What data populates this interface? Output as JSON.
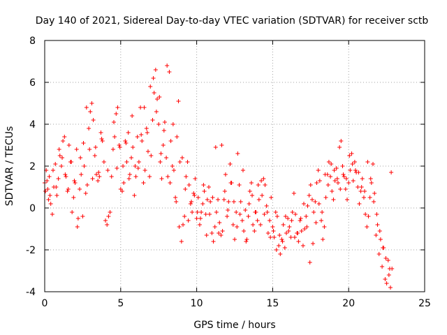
{
  "chart_data": {
    "type": "scatter",
    "title": "Day 140 of 2021, Sidereal Day-to-day VTEC variation (SDTVAR) for receiver sctb",
    "xlabel": "GPS time / hours",
    "ylabel": "SDTVAR / TECUs",
    "xlim": [
      0,
      25
    ],
    "ylim": [
      -4,
      8
    ],
    "xticks": [
      0,
      5,
      10,
      15,
      20,
      25
    ],
    "yticks": [
      -4,
      -2,
      0,
      2,
      4,
      6,
      8
    ],
    "grid": true,
    "marker": "+",
    "color": "#ff0000",
    "series": [
      {
        "name": "SDTVAR",
        "x": [
          0.0,
          0.1,
          0.2,
          0.3,
          0.4,
          0.5,
          0.6,
          0.7,
          0.8,
          0.9,
          1.0,
          1.1,
          1.2,
          1.3,
          1.4,
          1.5,
          1.6,
          1.7,
          1.8,
          1.9,
          2.0,
          2.1,
          2.2,
          2.3,
          2.4,
          2.5,
          2.6,
          2.7,
          2.8,
          2.9,
          3.0,
          3.1,
          3.2,
          3.3,
          3.4,
          3.5,
          3.6,
          3.7,
          3.8,
          3.9,
          4.0,
          4.1,
          4.2,
          4.3,
          4.4,
          4.5,
          4.6,
          4.7,
          4.8,
          4.9,
          5.0,
          5.1,
          5.2,
          5.3,
          5.4,
          5.5,
          5.6,
          5.7,
          5.8,
          5.9,
          6.0,
          6.1,
          6.2,
          6.3,
          6.4,
          6.5,
          6.6,
          6.7,
          6.8,
          6.9,
          7.0,
          7.1,
          7.2,
          7.3,
          7.4,
          7.5,
          7.6,
          7.7,
          7.8,
          7.9,
          8.0,
          8.1,
          8.2,
          8.3,
          8.4,
          8.5,
          8.6,
          8.7,
          8.8,
          8.9,
          9.0,
          9.1,
          9.2,
          9.3,
          9.4,
          9.5,
          9.6,
          9.7,
          9.8,
          9.9,
          10.0,
          10.1,
          10.2,
          10.3,
          10.4,
          10.5,
          10.6,
          10.7,
          10.8,
          10.9,
          11.0,
          11.1,
          11.2,
          11.3,
          11.4,
          11.5,
          11.6,
          11.7,
          11.8,
          11.9,
          12.0,
          12.1,
          12.2,
          12.3,
          12.4,
          12.5,
          12.6,
          12.7,
          12.8,
          12.9,
          13.0,
          13.1,
          13.2,
          13.3,
          13.4,
          13.5,
          13.6,
          13.7,
          13.8,
          13.9,
          14.0,
          14.1,
          14.2,
          14.3,
          14.4,
          14.5,
          14.6,
          14.7,
          14.8,
          14.9,
          15.0,
          15.1,
          15.2,
          15.3,
          15.4,
          15.5,
          15.6,
          15.7,
          15.8,
          15.9,
          16.0,
          16.1,
          16.2,
          16.3,
          16.4,
          16.5,
          16.6,
          16.7,
          16.8,
          16.9,
          17.0,
          17.1,
          17.2,
          17.3,
          17.4,
          17.5,
          17.6,
          17.7,
          17.8,
          17.9,
          18.0,
          18.1,
          18.2,
          18.3,
          18.4,
          18.5,
          18.6,
          18.7,
          18.8,
          18.9,
          19.0,
          19.1,
          19.2,
          19.3,
          19.4,
          19.5,
          19.6,
          19.7,
          19.8,
          19.9,
          20.0,
          20.1,
          20.2,
          20.3,
          20.4,
          20.5,
          20.6,
          20.7,
          20.8,
          20.9,
          21.0,
          21.1,
          21.2,
          21.3,
          21.4,
          21.5,
          21.6,
          21.7,
          21.8,
          21.9,
          22.0,
          22.1,
          22.2,
          22.3,
          22.4,
          22.5,
          22.6,
          22.7,
          22.8,
          0.05,
          0.15,
          0.25,
          0.35,
          0.55,
          0.75,
          0.95,
          1.15,
          1.35,
          1.55,
          1.75,
          1.95,
          2.15,
          2.35,
          2.55,
          2.75,
          2.95,
          3.15,
          3.35,
          3.55,
          3.75,
          4.15,
          4.55,
          4.75,
          4.95,
          5.15,
          5.35,
          5.55,
          5.75,
          5.95,
          6.15,
          6.35,
          6.55,
          6.75,
          6.95,
          7.15,
          7.35,
          7.55,
          7.65,
          7.85,
          8.05,
          8.25,
          8.45,
          8.65,
          8.85,
          9.05,
          9.25,
          9.45,
          9.65,
          9.85,
          10.05,
          10.25,
          10.45,
          10.65,
          10.85,
          11.05,
          11.25,
          11.45,
          11.65,
          11.85,
          12.05,
          12.25,
          12.45,
          12.65,
          12.85,
          13.05,
          13.25,
          13.45,
          13.65,
          13.85,
          14.05,
          14.25,
          14.45,
          14.65,
          14.85,
          15.05,
          15.25,
          15.45,
          15.65,
          15.85,
          16.05,
          16.25,
          16.45,
          16.65,
          16.85,
          17.05,
          17.25,
          17.45,
          17.65,
          17.85,
          18.05,
          18.25,
          18.45,
          18.65,
          18.85,
          19.05,
          19.25,
          19.45,
          19.65,
          19.85,
          20.05,
          20.25,
          20.45,
          20.65,
          20.85,
          21.05,
          21.25,
          21.45,
          21.65,
          21.85,
          22.05,
          22.25,
          22.45,
          22.65,
          22.75,
          22.85
        ],
        "y": [
          1.2,
          1.8,
          0.9,
          1.5,
          0.2,
          -0.3,
          1.0,
          2.1,
          0.6,
          1.4,
          2.5,
          2.0,
          3.2,
          3.4,
          1.5,
          0.8,
          3.0,
          2.2,
          -0.2,
          0.5,
          1.2,
          2.8,
          -0.5,
          0.9,
          1.6,
          -0.4,
          2.0,
          0.7,
          1.1,
          3.8,
          4.6,
          5.0,
          4.2,
          2.5,
          1.6,
          1.3,
          1.5,
          3.6,
          3.2,
          2.2,
          -0.6,
          -0.8,
          -0.4,
          -0.2,
          1.5,
          2.8,
          3.4,
          4.5,
          4.8,
          3.0,
          0.9,
          0.8,
          1.2,
          3.2,
          2.2,
          3.6,
          1.6,
          2.4,
          2.9,
          0.6,
          1.5,
          3.4,
          2.2,
          4.8,
          3.2,
          1.2,
          1.8,
          3.8,
          2.7,
          1.5,
          2.5,
          4.2,
          5.5,
          6.6,
          5.2,
          4.0,
          2.2,
          1.4,
          3.0,
          4.1,
          2.4,
          1.5,
          6.5,
          3.2,
          2.0,
          1.8,
          0.5,
          3.4,
          5.1,
          2.2,
          -1.6,
          -0.8,
          -0.4,
          1.5,
          2.2,
          1.1,
          0.2,
          -0.2,
          0.7,
          1.4,
          -0.5,
          0.5,
          -0.8,
          -0.2,
          0.2,
          0.8,
          -0.3,
          0.4,
          1.0,
          0.3,
          -1.2,
          -1.6,
          -0.9,
          -0.2,
          0.4,
          -0.7,
          -1.3,
          -1.1,
          0.4,
          1.6,
          -0.4,
          0.3,
          2.1,
          1.2,
          -0.8,
          -1.5,
          -0.2,
          2.6,
          1.1,
          0.3,
          -0.6,
          -1.1,
          -0.1,
          -1.5,
          -0.4,
          0.8,
          1.2,
          -0.8,
          -1.1,
          -0.2,
          -0.6,
          0.4,
          -0.8,
          0.6,
          1.4,
          1.1,
          0.1,
          -1.2,
          -0.6,
          0.5,
          -0.9,
          -1.4,
          -0.2,
          -0.4,
          -1.8,
          -2.2,
          -1.5,
          -0.8,
          -1.9,
          -1.2,
          -0.5,
          -0.9,
          -1.4,
          -0.2,
          0.7,
          -0.3,
          -1.2,
          -1.6,
          -0.6,
          -1.1,
          -1.8,
          -1.0,
          -0.4,
          0.1,
          0.6,
          1.1,
          0.4,
          -0.2,
          0.3,
          1.2,
          1.8,
          1.3,
          -0.6,
          -1.5,
          -0.9,
          0.5,
          1.6,
          2.2,
          1.5,
          0.8,
          0.4,
          1.3,
          1.9,
          1.2,
          2.9,
          3.2,
          2.0,
          1.5,
          0.9,
          0.4,
          1.2,
          1.8,
          2.6,
          1.3,
          2.2,
          1.7,
          1.0,
          0.2,
          0.8,
          1.4,
          0.5,
          -0.3,
          -0.9,
          -0.4,
          0.5,
          1.2,
          2.1,
          0.7,
          -1.3,
          -0.8,
          -2.2,
          -1.5,
          -2.8,
          -1.9,
          -3.4,
          -3.6,
          -2.5,
          -2.9,
          1.7,
          0.8,
          1.3,
          0.4,
          0.6,
          1.8,
          1.0,
          2.8,
          2.4,
          1.6,
          0.9,
          2.2,
          1.3,
          -0.9,
          2.4,
          3.1,
          4.8,
          2.8,
          1.4,
          2.9,
          1.7,
          3.3,
          1.8,
          4.1,
          1.9,
          2.9,
          2.0,
          3.1,
          1.4,
          4.4,
          2.0,
          1.9,
          3.5,
          4.8,
          3.6,
          5.8,
          6.2,
          4.6,
          5.3,
          2.6,
          3.7,
          6.8,
          1.2,
          4.0,
          0.3,
          -0.9,
          2.4,
          0.9,
          -0.6,
          0.3,
          0.6,
          -0.2,
          -0.5,
          1.1,
          -1.3,
          -0.3,
          0.5,
          2.9,
          -1.2,
          3.0,
          0.8,
          -0.1,
          1.2,
          0.3,
          -0.9,
          -0.3,
          1.8,
          -1.6,
          0.2,
          0.6,
          -0.2,
          1.1,
          1.3,
          -0.3,
          -0.2,
          -1.4,
          -1.1,
          -2.0,
          -1.3,
          -1.6,
          -0.4,
          -1.1,
          -0.6,
          -1.4,
          -1.2,
          -0.5,
          0.2,
          -0.9,
          -2.6,
          -1.7,
          -0.7,
          0.2,
          -0.2,
          1.6,
          1.1,
          2.1,
          1.8,
          1.4,
          0.9,
          1.6,
          1.4,
          2.5,
          2.1,
          1.8,
          1.7,
          1.0,
          0.8,
          2.2,
          1.4,
          0.3,
          -0.3,
          -1.1,
          -1.9,
          -2.4,
          -3.2,
          -3.8,
          -2.9
        ]
      }
    ]
  }
}
